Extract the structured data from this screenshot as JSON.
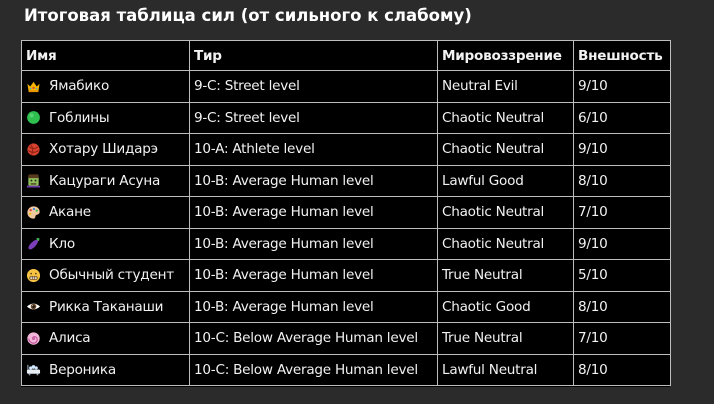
{
  "title": "Итоговая таблица сил (от сильного к слабому)",
  "table": {
    "headers": [
      "Имя",
      "Тир",
      "Мировоззрение",
      "Внешность"
    ],
    "rows": [
      {
        "icon": "crown-icon",
        "name": "Ямабико",
        "tier": "9-C: Street level",
        "alignment": "Neutral Evil",
        "looks": "9/10"
      },
      {
        "icon": "green-circle-icon",
        "name": "Гоблины",
        "tier": "9-C: Street level",
        "alignment": "Chaotic Neutral",
        "looks": "6/10"
      },
      {
        "icon": "yarn-ball-icon",
        "name": "Хотару Шидарэ",
        "tier": "10-A: Athlete level",
        "alignment": "Chaotic Neutral",
        "looks": "9/10"
      },
      {
        "icon": "zombie-icon",
        "name": "Кацураги Асуна",
        "tier": "10-B: Average Human level",
        "alignment": "Lawful Good",
        "looks": "8/10"
      },
      {
        "icon": "artist-palette-icon",
        "name": "Акане",
        "tier": "10-B: Average Human level",
        "alignment": "Chaotic Neutral",
        "looks": "7/10"
      },
      {
        "icon": "eggplant-icon",
        "name": "Кло",
        "tier": "10-B: Average Human level",
        "alignment": "Chaotic Neutral",
        "looks": "9/10"
      },
      {
        "icon": "grimacing-face-icon",
        "name": "Обычный студент",
        "tier": "10-B: Average Human level",
        "alignment": "True Neutral",
        "looks": "5/10"
      },
      {
        "icon": "eye-icon",
        "name": "Рикка Таканаши",
        "tier": "10-B: Average Human level",
        "alignment": "Chaotic Good",
        "looks": "8/10"
      },
      {
        "icon": "swirl-lollipop-icon",
        "name": "Алиса",
        "tier": "10-C: Below Average Human level",
        "alignment": "True Neutral",
        "looks": "7/10"
      },
      {
        "icon": "bathtub-icon",
        "name": "Вероника",
        "tier": "10-C: Below Average Human level",
        "alignment": "Lawful Neutral",
        "looks": "8/10"
      }
    ]
  }
}
